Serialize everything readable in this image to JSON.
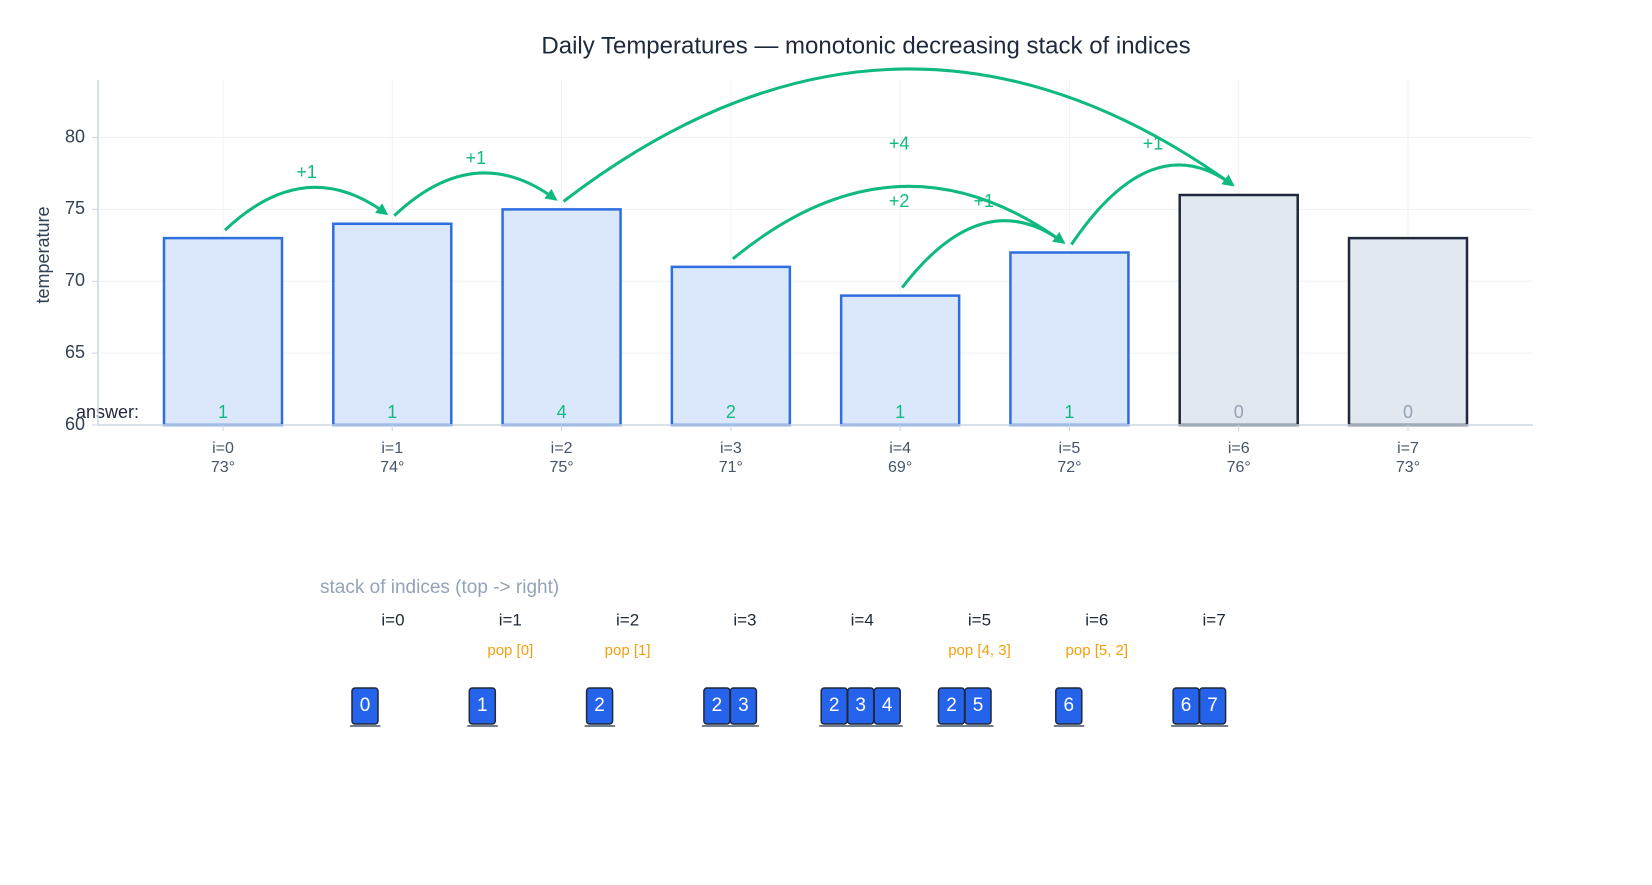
{
  "chart_data": {
    "type": "bar",
    "title": "Daily Temperatures — monotonic decreasing stack of indices",
    "y_label": "temperature",
    "categories": [
      "i=0",
      "i=1",
      "i=2",
      "i=3",
      "i=4",
      "i=5",
      "i=6",
      "i=7"
    ],
    "values": [
      73,
      74,
      75,
      71,
      69,
      72,
      76,
      73
    ],
    "value_labels": [
      "73°",
      "74°",
      "75°",
      "71°",
      "69°",
      "72°",
      "76°",
      "73°"
    ],
    "color": "#dbe8fb",
    "edge_color": "#2f6ee0",
    "idle_color": "#e2e8f0",
    "idle_edge_color": "#1e293b",
    "ylim": [
      60,
      84
    ],
    "yticks": [
      60,
      65,
      70,
      75,
      80
    ],
    "grid": true,
    "answer_label": "answer:",
    "answers": [
      1,
      1,
      4,
      2,
      1,
      1,
      0,
      0
    ],
    "answer_color": "#10b981",
    "idle_answer_color": "#94a3b8",
    "arrow_color": "#10b981",
    "arrows": [
      {
        "from": 0,
        "to": 1,
        "label": "+1"
      },
      {
        "from": 1,
        "to": 2,
        "label": "+1"
      },
      {
        "from": 2,
        "to": 6,
        "label": "+4"
      },
      {
        "from": 3,
        "to": 5,
        "label": "+2"
      },
      {
        "from": 4,
        "to": 5,
        "label": "+1"
      },
      {
        "from": 5,
        "to": 6,
        "label": "+1"
      }
    ]
  },
  "stack_panel": {
    "title": "stack of indices  (top -> right)",
    "steps": [
      {
        "label": "i=0",
        "stack": [
          0
        ]
      },
      {
        "label": "i=1",
        "pop": "pop [0]",
        "stack": [
          1
        ]
      },
      {
        "label": "i=2",
        "pop": "pop [1]",
        "stack": [
          2
        ]
      },
      {
        "label": "i=3",
        "stack": [
          2,
          3
        ]
      },
      {
        "label": "i=4",
        "stack": [
          2,
          3,
          4
        ]
      },
      {
        "label": "i=5",
        "pop": "pop [4, 3]",
        "stack": [
          2,
          5
        ]
      },
      {
        "label": "i=6",
        "pop": "pop [5, 2]",
        "stack": [
          6
        ]
      },
      {
        "label": "i=7",
        "stack": [
          6,
          7
        ]
      }
    ]
  }
}
